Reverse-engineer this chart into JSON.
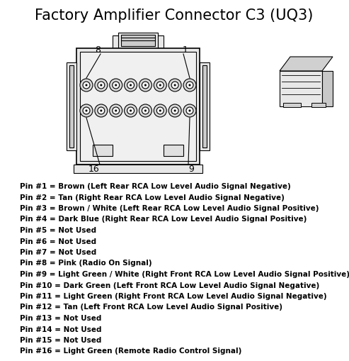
{
  "title": "Factory Amplifier Connector C3 (UQ3)",
  "title_fontsize": 15,
  "background_color": "#ffffff",
  "text_color": "#000000",
  "pin_labels": [
    "Pin #1 = Brown (Left Rear RCA Low Level Audio Signal Negative)",
    "Pin #2 = Tan (Right Rear RCA Low Level Audio Signal Negative)",
    "Pin #3 = Brown / White (Left Rear RCA Low Level Audio Signal Positive)",
    "Pin #4 = Dark Blue (Right Rear RCA Low Level Audio Signal Positive)",
    "Pin #5 = Not Used",
    "Pin #6 = Not Used",
    "Pin #7 = Not Used",
    "Pin #8 = Pink (Radio On Signal)",
    "Pin #9 = Light Green / White (Right Front RCA Low Level Audio Signal Positive)",
    "Pin #10 = Dark Green (Left Front RCA Low Level Audio Signal Negative)",
    "Pin #11 = Light Green (Right Front RCA Low Level Audio Signal Negative)",
    "Pin #12 = Tan (Left Front RCA Low Level Audio Signal Positive)",
    "Pin #13 = Not Used",
    "Pin #14 = Not Used",
    "Pin #15 = Not Used",
    "Pin #16 = Light Green (Remote Radio Control Signal)"
  ],
  "pin_fontsize": 7.5,
  "connector_label_8": "8",
  "connector_label_1": "1",
  "connector_label_16": "16",
  "connector_label_9": "9",
  "connector_label_fontsize": 9,
  "figsize": [
    4.93,
    5.09
  ],
  "dpi": 100,
  "line_color": "#000000",
  "fill_light": "#e8e8e8",
  "fill_mid": "#cccccc",
  "fill_dark": "#aaaaaa"
}
